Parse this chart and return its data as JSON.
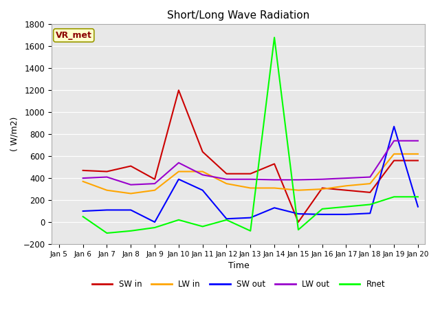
{
  "title": "Short/Long Wave Radiation",
  "xlabel": "Time",
  "ylabel": "( W/m2)",
  "ylim": [
    -200,
    1800
  ],
  "label_text": "VR_met",
  "background_color": "#e8e8e8",
  "xtick_labels": [
    "Jan 5",
    "Jan 6",
    "Jan 7",
    "Jan 8",
    "Jan 9",
    "Jan 10",
    "Jan 11",
    "Jan 12",
    "Jan 13",
    "Jan 14",
    "Jan 15",
    "Jan 16",
    "Jan 17",
    "Jan 18",
    "Jan 19",
    "Jan 20"
  ],
  "ytick_vals": [
    -200,
    0,
    200,
    400,
    600,
    800,
    1000,
    1200,
    1400,
    1600,
    1800
  ],
  "series": {
    "SW in": {
      "color": "#cc0000",
      "x": [
        1,
        2,
        3,
        4,
        5,
        6,
        7,
        8,
        9,
        10,
        11,
        12,
        13,
        14,
        15
      ],
      "y": [
        470,
        460,
        510,
        390,
        1200,
        640,
        440,
        440,
        530,
        0,
        310,
        290,
        270,
        560,
        560
      ]
    },
    "LW in": {
      "color": "orange",
      "x": [
        1,
        2,
        3,
        4,
        5,
        6,
        7,
        8,
        9,
        10,
        11,
        12,
        13,
        14,
        15
      ],
      "y": [
        370,
        290,
        260,
        290,
        460,
        460,
        350,
        310,
        310,
        290,
        300,
        330,
        350,
        620,
        620
      ]
    },
    "SW out": {
      "color": "blue",
      "x": [
        1,
        2,
        3,
        4,
        5,
        6,
        7,
        8,
        9,
        10,
        11,
        12,
        13,
        14,
        15
      ],
      "y": [
        100,
        110,
        110,
        0,
        390,
        290,
        30,
        40,
        130,
        75,
        70,
        70,
        80,
        870,
        140
      ]
    },
    "LW out": {
      "color": "#9900cc",
      "x": [
        1,
        2,
        3,
        4,
        5,
        6,
        7,
        8,
        9,
        10,
        11,
        12,
        13,
        14,
        15
      ],
      "y": [
        400,
        410,
        340,
        350,
        540,
        430,
        390,
        390,
        385,
        385,
        390,
        400,
        410,
        740,
        740
      ]
    },
    "Rnet": {
      "color": "lime",
      "x": [
        1,
        2,
        3,
        4,
        5,
        6,
        7,
        8,
        9,
        10,
        11,
        12,
        13,
        14,
        15
      ],
      "y": [
        50,
        -100,
        -80,
        -50,
        20,
        -40,
        20,
        -80,
        1680,
        -70,
        120,
        140,
        160,
        230,
        230
      ]
    }
  }
}
